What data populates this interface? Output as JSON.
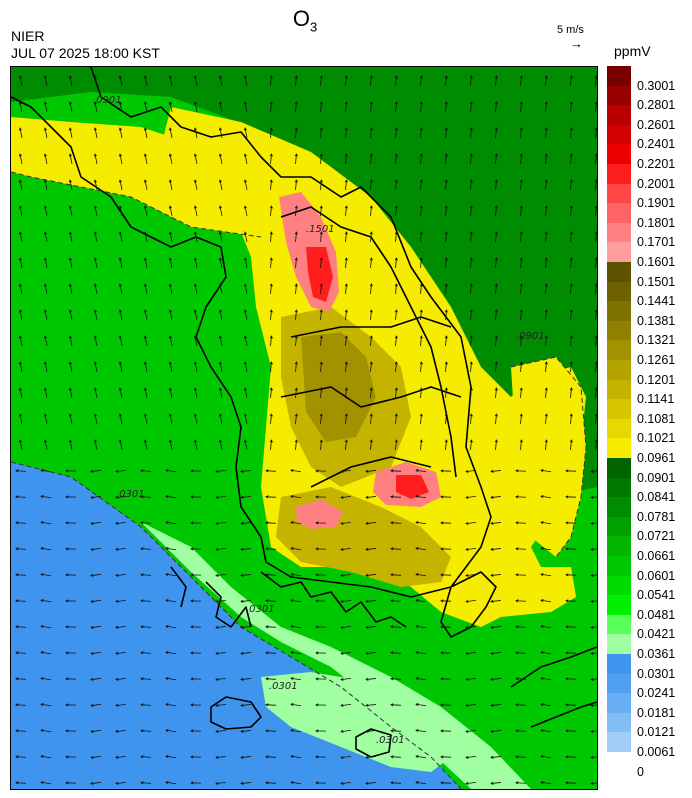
{
  "header": {
    "title": "O",
    "title_subscript": "3",
    "agency": "NIER",
    "timestamp": "JUL 07 2025 18:00 KST",
    "wind_scale_label": "5 m/s",
    "wind_arrow_glyph": "→",
    "unit": "ppmV"
  },
  "legend": {
    "levels": [
      {
        "label": "0.3001",
        "color": "#780000"
      },
      {
        "label": "0.2801",
        "color": "#990000"
      },
      {
        "label": "0.2601",
        "color": "#b80000"
      },
      {
        "label": "0.2401",
        "color": "#d40000"
      },
      {
        "label": "0.2201",
        "color": "#ec0000"
      },
      {
        "label": "0.2001",
        "color": "#ff1e1e"
      },
      {
        "label": "0.1901",
        "color": "#ff4646"
      },
      {
        "label": "0.1801",
        "color": "#ff6464"
      },
      {
        "label": "0.1701",
        "color": "#ff8080"
      },
      {
        "label": "0.1601",
        "color": "#ff9e9e"
      },
      {
        "label": "0.1501",
        "color": "#5e5200"
      },
      {
        "label": "0.1441",
        "color": "#6e6200"
      },
      {
        "label": "0.1381",
        "color": "#807200"
      },
      {
        "label": "0.1321",
        "color": "#908200"
      },
      {
        "label": "0.1261",
        "color": "#a29200"
      },
      {
        "label": "0.1201",
        "color": "#b4a400"
      },
      {
        "label": "0.1141",
        "color": "#c4b400"
      },
      {
        "label": "0.1081",
        "color": "#d6c600"
      },
      {
        "label": "0.1021",
        "color": "#e6d800"
      },
      {
        "label": "0.0961",
        "color": "#f6ec00"
      },
      {
        "label": "0.0901",
        "color": "#006400"
      },
      {
        "label": "0.0841",
        "color": "#007800"
      },
      {
        "label": "0.0781",
        "color": "#008c00"
      },
      {
        "label": "0.0721",
        "color": "#00a000"
      },
      {
        "label": "0.0661",
        "color": "#00b400"
      },
      {
        "label": "0.0601",
        "color": "#00c800"
      },
      {
        "label": "0.0541",
        "color": "#00dc00"
      },
      {
        "label": "0.0481",
        "color": "#00f000"
      },
      {
        "label": "0.0421",
        "color": "#5aff5a"
      },
      {
        "label": "0.0361",
        "color": "#a0ffa0"
      },
      {
        "label": "0.0301",
        "color": "#3f94ee"
      },
      {
        "label": "0.0241",
        "color": "#4fa0f0"
      },
      {
        "label": "0.0181",
        "color": "#68aef2"
      },
      {
        "label": "0.0121",
        "color": "#82bdf4"
      },
      {
        "label": "0.0061",
        "color": "#a0cef6"
      },
      {
        "label": "0",
        "color": "#a0cef6"
      }
    ]
  },
  "contour_labels": {
    "c0901": ".0901",
    "c1501": ".1501",
    "c0301": ".0301"
  },
  "colors": {
    "ocean_low": "#3f94ee",
    "light_green": "#a0ffa0",
    "green": "#00c800",
    "dark_green": "#008c00",
    "yellow": "#f6ec00",
    "olive": "#c4b400",
    "pink": "#ff8080",
    "red": "#ff1e1e",
    "coast": "#000000"
  }
}
